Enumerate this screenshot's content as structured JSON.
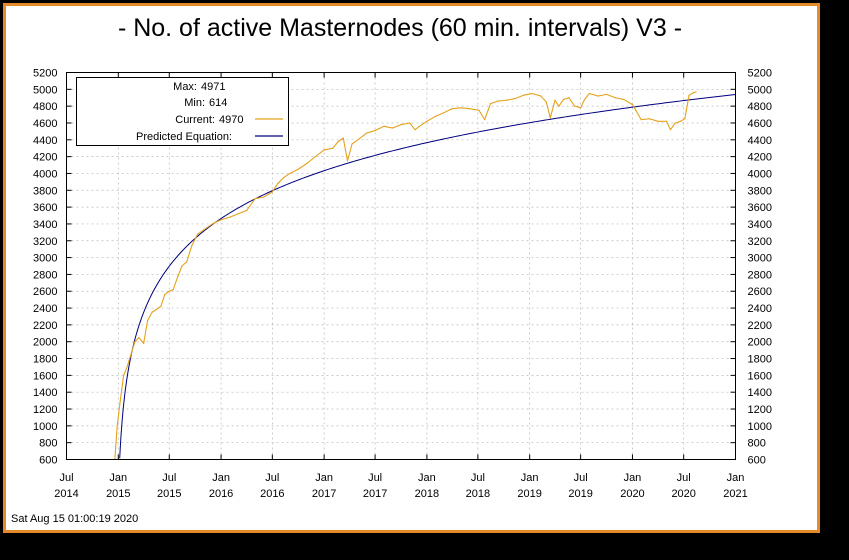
{
  "chart_data": {
    "type": "line",
    "title": "- No. of active Masternodes (60 min. intervals) V3 -",
    "timestamp": "Sat Aug 15 01:00:19 2020",
    "x_tick_labels": [
      {
        "month": "Jul",
        "year": "2014"
      },
      {
        "month": "Jan",
        "year": "2015"
      },
      {
        "month": "Jul",
        "year": "2015"
      },
      {
        "month": "Jan",
        "year": "2016"
      },
      {
        "month": "Jul",
        "year": "2016"
      },
      {
        "month": "Jan",
        "year": "2017"
      },
      {
        "month": "Jul",
        "year": "2017"
      },
      {
        "month": "Jan",
        "year": "2018"
      },
      {
        "month": "Jul",
        "year": "2018"
      },
      {
        "month": "Jan",
        "year": "2019"
      },
      {
        "month": "Jul",
        "year": "2019"
      },
      {
        "month": "Jan",
        "year": "2020"
      },
      {
        "month": "Jul",
        "year": "2020"
      },
      {
        "month": "Jan",
        "year": "2021"
      }
    ],
    "xlim": [
      "2014-07",
      "2021-01"
    ],
    "ylim": [
      600,
      5200
    ],
    "y_ticks": [
      600,
      800,
      1000,
      1200,
      1400,
      1600,
      1800,
      2000,
      2200,
      2400,
      2600,
      2800,
      3000,
      3200,
      3400,
      3600,
      3800,
      4000,
      4200,
      4400,
      4600,
      4800,
      5000,
      5200
    ],
    "grid": true,
    "legend": {
      "placement": "top-left",
      "max_label": "Max:",
      "max_value": "4971",
      "min_label": "Min:",
      "min_value": "614",
      "current_label": "Current:",
      "current_value": "4970",
      "predicted_label": "Predicted Equation:"
    },
    "colors": {
      "background": "#000000",
      "frame": "#e5892a",
      "plot_bg": "#ffffff",
      "current": "#e5a21d",
      "avg": "#000000",
      "predicted": "#00007f",
      "grid": "#b8b8b8"
    },
    "series": [
      {
        "name": "Current:",
        "color": "#e5a21d",
        "x": [
          "2014-12-20",
          "2014-12-28",
          "2015-01-08",
          "2015-01-20",
          "2015-02-01",
          "2015-02-15",
          "2015-03-01",
          "2015-03-15",
          "2015-04-01",
          "2015-04-15",
          "2015-05-01",
          "2015-05-15",
          "2015-06-01",
          "2015-06-15",
          "2015-07-01",
          "2015-07-15",
          "2015-08-01",
          "2015-08-15",
          "2015-09-01",
          "2015-09-20",
          "2015-10-10",
          "2015-11-01",
          "2015-12-01",
          "2016-01-01",
          "2016-02-01",
          "2016-03-01",
          "2016-04-01",
          "2016-05-01",
          "2016-06-01",
          "2016-07-01",
          "2016-07-20",
          "2016-08-10",
          "2016-09-01",
          "2016-10-01",
          "2016-11-01",
          "2016-12-01",
          "2017-01-01",
          "2017-02-01",
          "2017-02-20",
          "2017-03-10",
          "2017-03-25",
          "2017-04-10",
          "2017-05-01",
          "2017-06-01",
          "2017-07-01",
          "2017-08-01",
          "2017-09-01",
          "2017-10-01",
          "2017-11-01",
          "2017-11-20",
          "2017-12-05",
          "2018-01-01",
          "2018-02-01",
          "2018-03-01",
          "2018-04-01",
          "2018-05-01",
          "2018-06-01",
          "2018-06-20",
          "2018-07-05",
          "2018-07-25",
          "2018-08-15",
          "2018-09-10",
          "2018-10-10",
          "2018-11-10",
          "2018-12-10",
          "2019-01-10",
          "2019-02-10",
          "2019-03-01",
          "2019-03-15",
          "2019-04-01",
          "2019-04-15",
          "2019-05-01",
          "2019-05-20",
          "2019-06-10",
          "2019-07-01",
          "2019-07-15",
          "2019-08-01",
          "2019-09-01",
          "2019-10-01",
          "2019-11-01",
          "2019-12-01",
          "2020-01-01",
          "2020-02-01",
          "2020-03-01",
          "2020-04-01",
          "2020-05-01",
          "2020-05-15",
          "2020-06-01",
          "2020-06-20",
          "2020-07-05",
          "2020-07-20",
          "2020-08-05",
          "2020-08-14"
        ],
        "values": [
          614,
          1000,
          1300,
          1600,
          1700,
          1850,
          2000,
          2050,
          1980,
          2250,
          2350,
          2380,
          2420,
          2560,
          2600,
          2620,
          2780,
          2900,
          2950,
          3150,
          3280,
          3330,
          3400,
          3450,
          3480,
          3520,
          3560,
          3700,
          3720,
          3780,
          3880,
          3950,
          4000,
          4050,
          4120,
          4200,
          4280,
          4300,
          4380,
          4420,
          4150,
          4350,
          4400,
          4480,
          4510,
          4560,
          4540,
          4580,
          4600,
          4520,
          4560,
          4620,
          4680,
          4720,
          4770,
          4780,
          4770,
          4760,
          4750,
          4640,
          4830,
          4860,
          4870,
          4890,
          4930,
          4950,
          4920,
          4850,
          4660,
          4870,
          4800,
          4880,
          4900,
          4800,
          4780,
          4880,
          4950,
          4920,
          4940,
          4900,
          4880,
          4820,
          4640,
          4650,
          4620,
          4620,
          4520,
          4600,
          4620,
          4650,
          4930,
          4960,
          4970
        ]
      }
    ]
  }
}
